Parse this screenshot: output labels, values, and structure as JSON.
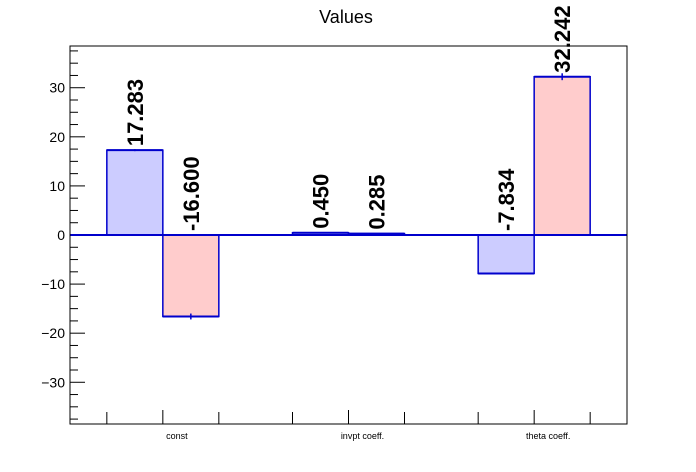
{
  "chart_data": {
    "type": "bar",
    "title": "Values",
    "categories": [
      "const",
      "invpt coeff.",
      "theta coeff."
    ],
    "series": [
      {
        "values": [
          17.283,
          0.45,
          -7.834
        ],
        "errors": [
          0.2,
          0.1,
          0.2
        ],
        "labels": [
          "17.283",
          "0.450",
          "-7.834"
        ]
      },
      {
        "values": [
          -16.6,
          0.285,
          32.242
        ],
        "errors": [
          0.6,
          0.1,
          0.7
        ],
        "labels": [
          "-16.600",
          "0.285",
          "32.242"
        ]
      }
    ],
    "ylim": [
      -38.5,
      38.5
    ],
    "yticks": [
      -30,
      -20,
      -10,
      0,
      10,
      20,
      30
    ],
    "ytick_labels": [
      "−30",
      "−20",
      "−10",
      "0",
      "10",
      "20",
      "30"
    ],
    "minor_ytick_step": 2.5,
    "colors": {
      "series_fills": [
        "#ccccff",
        "#ffcccc"
      ],
      "stroke": "#0000cc",
      "zero_line": "#0000cc"
    },
    "grid": false,
    "legend": "none"
  }
}
